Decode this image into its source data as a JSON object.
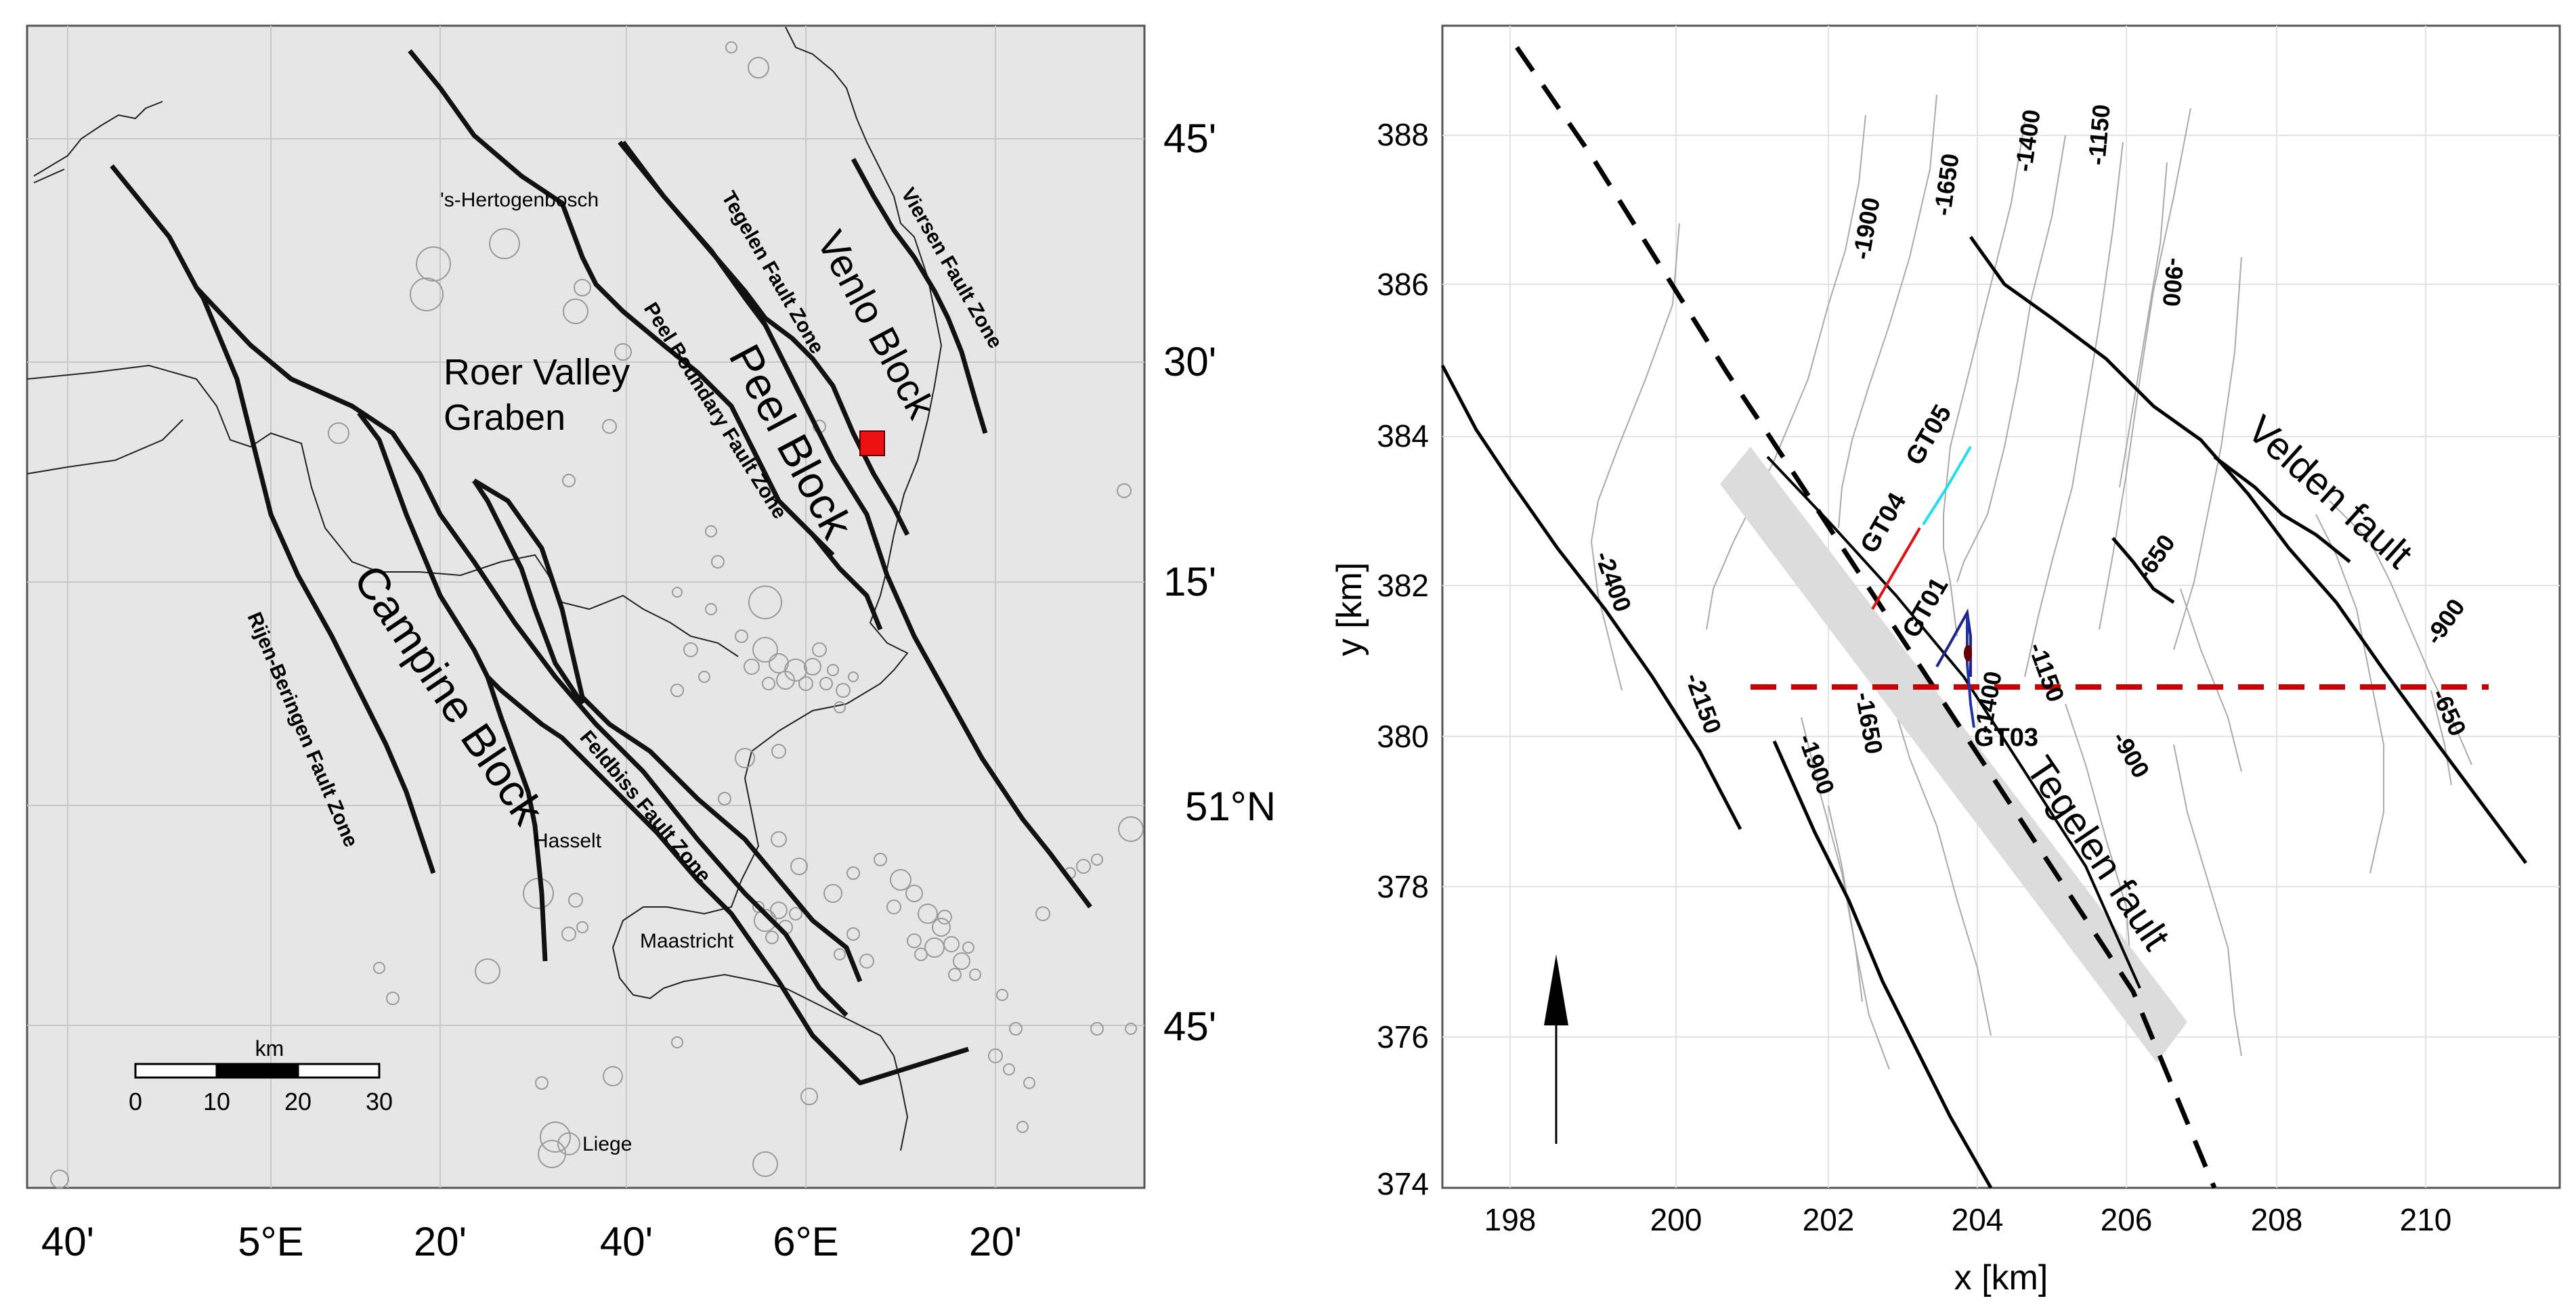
{
  "left_map": {
    "region_labels": {
      "roer": [
        "Roer Valley",
        "Graben"
      ],
      "peel": "Peel Block",
      "venlo": "Venlo Block",
      "campine": "Campine Block"
    },
    "fault_labels": {
      "tegelen": "Tegelen Fault Zone",
      "peel_boundary": "Peel Boundary Fault Zone",
      "viersen": "Viersen Fault Zone",
      "rijen": "Rijen-Beringen Fault Zone",
      "feldbiss": "Feldbiss Fault Zone"
    },
    "cities": {
      "hertogenbosch": "'s-Hertogenbosch",
      "hasselt": "Hasselt",
      "maastricht": "Maastricht",
      "liege": "Liege"
    },
    "lat_labels": [
      "45'",
      "30'",
      "15'",
      "51°N",
      "45'"
    ],
    "lon_labels": [
      "40'",
      "5°E",
      "20'",
      "40'",
      "6°E",
      "20'"
    ],
    "scale_bar": {
      "unit": "km",
      "ticks": [
        "0",
        "10",
        "20",
        "30"
      ]
    },
    "site_marker_color": "#ee1111"
  },
  "right_plot": {
    "xlabel": "x [km]",
    "ylabel": "y [km]",
    "x_ticks": [
      "198",
      "200",
      "202",
      "204",
      "206",
      "208",
      "210"
    ],
    "y_ticks": [
      "388",
      "386",
      "384",
      "382",
      "380",
      "378",
      "376",
      "374"
    ],
    "fault_labels": {
      "tegelen": "Tegelen fault",
      "velden": "Velden fault"
    },
    "well_labels": [
      "GT04",
      "GT05",
      "GT01",
      "GT03"
    ],
    "contour_labels": [
      "-1900",
      "-1650",
      "-1400",
      "-1150",
      "-900",
      "-2400",
      "-2150",
      "-1900",
      "-1650",
      "-1400",
      "-1150",
      "-900",
      "-650",
      "-900",
      "-650"
    ],
    "colors": {
      "gt05": "#22ddee",
      "gt04": "#dd1111",
      "gt01": "#222288",
      "profile": "#cc0000"
    }
  }
}
